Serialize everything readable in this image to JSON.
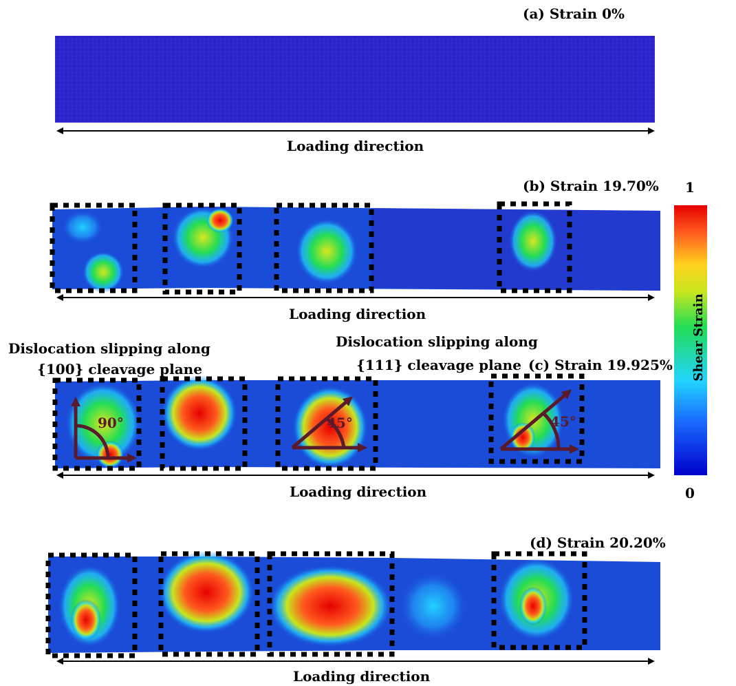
{
  "panels": [
    {
      "label": "(a) Strain 0%",
      "axis_label": "Loading direction"
    },
    {
      "label": "(b) Strain 19.70%",
      "axis_label": "Loading direction"
    },
    {
      "label": "(c) Strain 19.925%",
      "axis_label": "Loading direction"
    },
    {
      "label": "(d) Strain 20.20%",
      "axis_label": "Loading direction"
    }
  ],
  "annotations": {
    "slip_100_line1": "Dislocation slipping along",
    "slip_100_line2": "{100} cleavage plane",
    "slip_111_line1": "Dislocation slipping along",
    "slip_111_line2": "{111} cleavage plane",
    "angle_90": "90°",
    "angle_45_a": "45°",
    "angle_45_b": "45°"
  },
  "colorbar": {
    "title": "Shear Strain",
    "max_label": "1",
    "min_label": "0",
    "colors": [
      "#0000cc",
      "#1a6bff",
      "#22d4ff",
      "#22dd55",
      "#c8e61e",
      "#ffd21e",
      "#ff5a1e",
      "#e60000"
    ]
  }
}
